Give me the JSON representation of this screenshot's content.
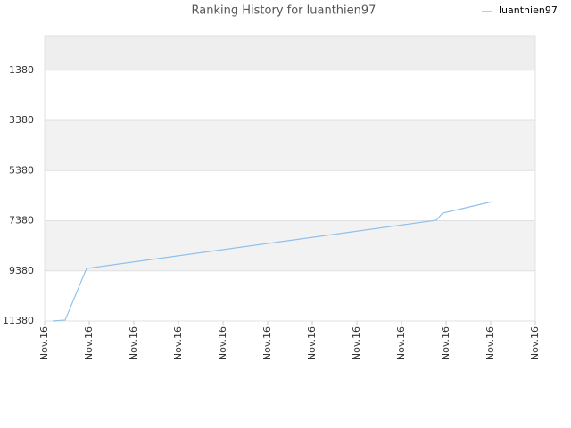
{
  "chart_data": {
    "type": "line",
    "title": "Ranking History for luanthien97",
    "x": [
      0.18,
      0.46,
      0.94,
      8.78,
      8.92,
      10.04
    ],
    "series": [
      {
        "name": "luanthien97",
        "color": "#90c0ec",
        "values": [
          11380,
          11344,
          9282,
          7361,
          7077,
          6615
        ]
      }
    ],
    "xlim": [
      0,
      11
    ],
    "xticks": [
      {
        "value": 0,
        "label": "Nov.16"
      },
      {
        "value": 1,
        "label": "Nov.16"
      },
      {
        "value": 2,
        "label": "Nov.16"
      },
      {
        "value": 3,
        "label": "Nov.16"
      },
      {
        "value": 4,
        "label": "Nov.16"
      },
      {
        "value": 5,
        "label": "Nov.16"
      },
      {
        "value": 6,
        "label": "Nov.16"
      },
      {
        "value": 7,
        "label": "Nov.16"
      },
      {
        "value": 8,
        "label": "Nov.16"
      },
      {
        "value": 9,
        "label": "Nov.16"
      },
      {
        "value": 10,
        "label": "Nov.16"
      },
      {
        "value": 11,
        "label": "Nov.16"
      }
    ],
    "ylim": [
      11380,
      0
    ],
    "yticks": [
      1380,
      3380,
      5380,
      7380,
      9380,
      11380
    ],
    "grid": true
  }
}
